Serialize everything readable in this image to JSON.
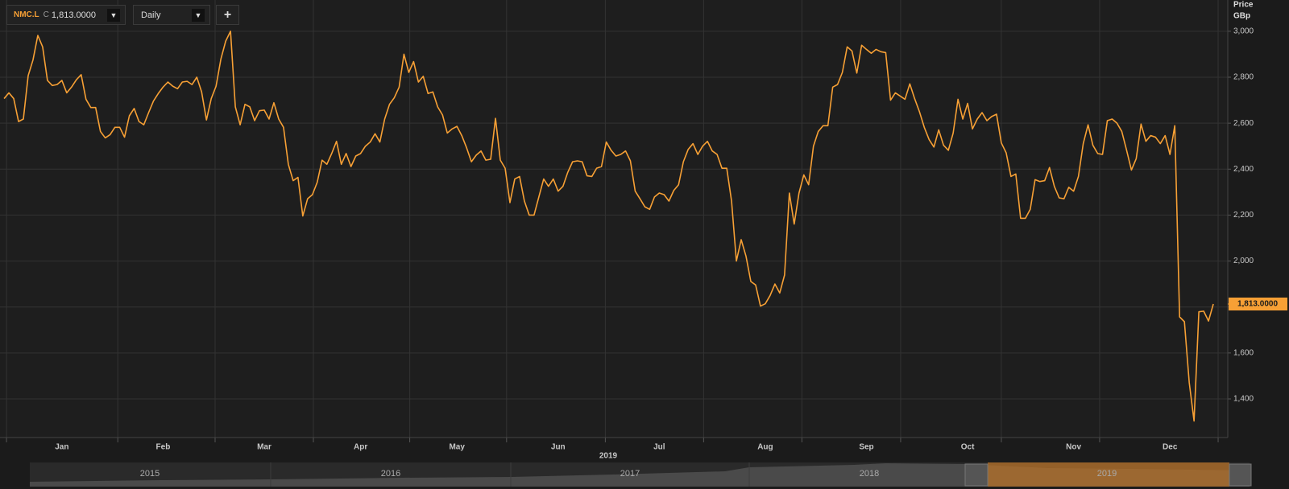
{
  "header": {
    "ticker": "NMC.L",
    "close_prefix": "C",
    "close": "1,813.0000",
    "interval": "Daily",
    "add": "+"
  },
  "chart_data": {
    "type": "line",
    "y_title": "Price",
    "y_unit": "GBp",
    "xlabel": "2019",
    "series": [
      {
        "name": "NMC.L",
        "color": "#f7a035",
        "values": [
          2707,
          2732,
          2707,
          2607,
          2618,
          2807,
          2875,
          2982,
          2932,
          2786,
          2764,
          2768,
          2786,
          2732,
          2757,
          2789,
          2811,
          2704,
          2668,
          2668,
          2564,
          2536,
          2550,
          2582,
          2582,
          2539,
          2632,
          2664,
          2607,
          2593,
          2646,
          2696,
          2729,
          2757,
          2779,
          2761,
          2750,
          2779,
          2782,
          2768,
          2800,
          2736,
          2614,
          2707,
          2761,
          2879,
          2957,
          3000,
          2671,
          2593,
          2682,
          2671,
          2611,
          2654,
          2657,
          2618,
          2689,
          2618,
          2582,
          2421,
          2350,
          2364,
          2196,
          2271,
          2289,
          2343,
          2439,
          2421,
          2468,
          2521,
          2421,
          2468,
          2411,
          2457,
          2468,
          2500,
          2518,
          2554,
          2518,
          2618,
          2682,
          2711,
          2757,
          2900,
          2821,
          2868,
          2779,
          2804,
          2729,
          2736,
          2671,
          2636,
          2557,
          2575,
          2586,
          2546,
          2493,
          2432,
          2461,
          2479,
          2439,
          2443,
          2621,
          2439,
          2404,
          2254,
          2357,
          2368,
          2261,
          2200,
          2200,
          2279,
          2357,
          2325,
          2357,
          2304,
          2325,
          2386,
          2432,
          2436,
          2432,
          2371,
          2368,
          2404,
          2411,
          2518,
          2482,
          2457,
          2464,
          2479,
          2436,
          2304,
          2271,
          2236,
          2225,
          2279,
          2296,
          2289,
          2261,
          2307,
          2332,
          2432,
          2486,
          2511,
          2464,
          2500,
          2521,
          2479,
          2464,
          2404,
          2404,
          2261,
          2000,
          2093,
          2021,
          1911,
          1896,
          1804,
          1814,
          1850,
          1900,
          1861,
          1939,
          2296,
          2161,
          2296,
          2375,
          2332,
          2500,
          2564,
          2589,
          2589,
          2757,
          2768,
          2821,
          2932,
          2914,
          2818,
          2939,
          2921,
          2904,
          2921,
          2911,
          2907,
          2700,
          2732,
          2718,
          2704,
          2771,
          2707,
          2650,
          2582,
          2529,
          2496,
          2571,
          2504,
          2482,
          2557,
          2704,
          2618,
          2686,
          2575,
          2618,
          2646,
          2611,
          2629,
          2639,
          2514,
          2471,
          2368,
          2379,
          2186,
          2186,
          2225,
          2354,
          2346,
          2350,
          2407,
          2325,
          2275,
          2271,
          2321,
          2304,
          2368,
          2511,
          2593,
          2504,
          2468,
          2464,
          2611,
          2618,
          2600,
          2564,
          2482,
          2396,
          2446,
          2596,
          2521,
          2546,
          2539,
          2511,
          2546,
          2464,
          2589,
          1757,
          1736,
          1471,
          1304,
          1779,
          1782,
          1739,
          1813
        ]
      }
    ],
    "last_price": {
      "value": 1813,
      "label": "1,813.0000"
    },
    "xlim": [
      -0.85,
      254
    ],
    "xticks": [
      {
        "value": 12,
        "label": "Jan"
      },
      {
        "value": 33,
        "label": "Feb"
      },
      {
        "value": 54,
        "label": "Mar"
      },
      {
        "value": 74,
        "label": "Apr"
      },
      {
        "value": 94,
        "label": "May"
      },
      {
        "value": 115,
        "label": "Jun"
      },
      {
        "value": 136,
        "label": "Jul"
      },
      {
        "value": 158,
        "label": "Aug"
      },
      {
        "value": 179,
        "label": "Sep"
      },
      {
        "value": 200,
        "label": "Oct"
      },
      {
        "value": 222,
        "label": "Nov"
      },
      {
        "value": 242,
        "label": "Dec"
      }
    ],
    "xgrid": [
      0.5,
      23.6,
      43.8,
      64.2,
      84.2,
      104.3,
      124.8,
      145.2,
      165.6,
      186.1,
      207,
      227.4,
      252
    ],
    "ylim": [
      1232,
      3136
    ],
    "yticks": [
      {
        "value": 1400,
        "label": "1,400"
      },
      {
        "value": 1600,
        "label": "1,600"
      },
      {
        "value": 1800,
        "label": "1,800"
      },
      {
        "value": 2000,
        "label": "2,000"
      },
      {
        "value": 2200,
        "label": "2,200"
      },
      {
        "value": 2400,
        "label": "2,400"
      },
      {
        "value": 2600,
        "label": "2,600"
      },
      {
        "value": 2800,
        "label": "2,800"
      },
      {
        "value": 3000,
        "label": "3,000"
      }
    ],
    "grid": true
  },
  "navigator": {
    "years": [
      "2015",
      "2016",
      "2017",
      "2018",
      "2019"
    ]
  }
}
